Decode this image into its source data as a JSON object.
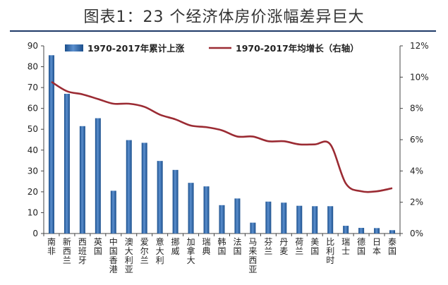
{
  "title": "图表1：23 个经济体房价涨幅差异巨大",
  "chart_data": {
    "type": "bar",
    "categories": [
      "南非",
      "新西兰",
      "西班牙",
      "英国",
      "中国香港",
      "澳大利亚",
      "爱尔兰",
      "意大利",
      "挪威",
      "加拿大",
      "瑞典",
      "韩国",
      "法国",
      "马来西亚",
      "芬兰",
      "丹麦",
      "荷兰",
      "美国",
      "比利时",
      "瑞士",
      "德国",
      "日本",
      "泰国"
    ],
    "series": [
      {
        "name": "1970-2017年累计上涨",
        "type": "bar",
        "axis": "left",
        "color": "#2e63a8",
        "values": [
          85.5,
          67,
          51.5,
          55.3,
          20.5,
          44.8,
          43.5,
          34.8,
          30.5,
          24.3,
          22.6,
          13.6,
          16.8,
          5.2,
          15.3,
          14.8,
          13.3,
          13.1,
          13.1,
          3.7,
          2.7,
          2.6,
          1.6
        ]
      },
      {
        "name": "1970-2017年均增长（右轴）",
        "type": "line",
        "axis": "right",
        "color": "#9b2b33",
        "values": [
          9.7,
          9.1,
          8.9,
          8.6,
          8.3,
          8.3,
          8.1,
          7.6,
          7.3,
          6.9,
          6.8,
          6.6,
          6.2,
          6.2,
          5.9,
          5.9,
          5.7,
          5.7,
          5.7,
          3.2,
          2.7,
          2.7,
          2.9
        ]
      }
    ],
    "y_left": {
      "min": 0,
      "max": 90,
      "ticks": [
        "0",
        "10",
        "20",
        "30",
        "40",
        "50",
        "60",
        "70",
        "80",
        "90"
      ]
    },
    "y_right": {
      "min": 0,
      "max": 12,
      "ticks": [
        "0%",
        "2%",
        "4%",
        "6%",
        "8%",
        "10%",
        "12%"
      ]
    },
    "legend_position": "top",
    "grid": false
  }
}
